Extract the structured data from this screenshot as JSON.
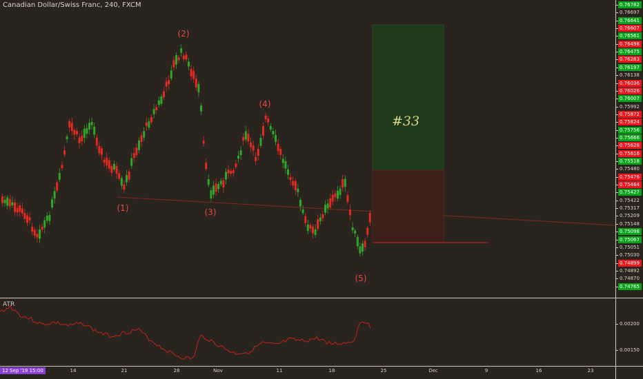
{
  "header": {
    "symbol_title": "Canadian Dollar/Swiss Franc, 240, FXCM"
  },
  "price_axis": {
    "labels": [
      {
        "text": "0.76782",
        "style": "g"
      },
      {
        "text": "0.76697",
        "style": "w"
      },
      {
        "text": "0.76641",
        "style": "g"
      },
      {
        "text": "0.76607",
        "style": "r"
      },
      {
        "text": "0.76561",
        "style": "g"
      },
      {
        "text": "0.76498",
        "style": "r"
      },
      {
        "text": "0.76475",
        "style": "g"
      },
      {
        "text": "0.76283",
        "style": "r"
      },
      {
        "text": "0.76197",
        "style": "g"
      },
      {
        "text": "0.76138",
        "style": "w"
      },
      {
        "text": "0.76036",
        "style": "r"
      },
      {
        "text": "0.76026",
        "style": "r"
      },
      {
        "text": "0.76007",
        "style": "g"
      },
      {
        "text": "0.75992",
        "style": "w"
      },
      {
        "text": "0.75872",
        "style": "r"
      },
      {
        "text": "0.75824",
        "style": "r"
      },
      {
        "text": "0.75756",
        "style": "g"
      },
      {
        "text": "0.75666",
        "style": "g"
      },
      {
        "text": "0.75628",
        "style": "r"
      },
      {
        "text": "0.75616",
        "style": "r"
      },
      {
        "text": "0.75518",
        "style": "g"
      },
      {
        "text": "0.75480",
        "style": "w"
      },
      {
        "text": "0.75476",
        "style": "r"
      },
      {
        "text": "0.75464",
        "style": "r"
      },
      {
        "text": "0.75427",
        "style": "g"
      },
      {
        "text": "0.75422",
        "style": "w"
      },
      {
        "text": "0.75317",
        "style": "w"
      },
      {
        "text": "0.75209",
        "style": "w"
      },
      {
        "text": "0.75148",
        "style": "w"
      },
      {
        "text": "0.75098",
        "style": "g"
      },
      {
        "text": "0.75067",
        "style": "g"
      },
      {
        "text": "0.75051",
        "style": "w"
      },
      {
        "text": "0.75030",
        "style": "w"
      },
      {
        "text": "0.74899",
        "style": "r"
      },
      {
        "text": "0.74892",
        "style": "w"
      },
      {
        "text": "0.74870",
        "style": "w"
      },
      {
        "text": "0.74765",
        "style": "g"
      }
    ]
  },
  "atr_pane": {
    "title": "ATR",
    "axis_labels": [
      "0.00200",
      "0.00150"
    ],
    "line_color": "#c0221c"
  },
  "time_axis": {
    "highlight_label": "12 Sep '19   15:00",
    "labels": [
      "14",
      "21",
      "28",
      "Nov",
      "11",
      "18",
      "25",
      "Dec",
      "9",
      "16",
      "23"
    ]
  },
  "waves": {
    "labels": [
      "(1)",
      "(2)",
      "(3)",
      "(4)",
      "(5)"
    ]
  },
  "trade_box": {
    "label": "#33",
    "profit_color": "#1f3a1a",
    "loss_color": "#3e201a"
  },
  "colors": {
    "background": "#2a241e",
    "candle_up": "#2fa52a",
    "candle_down": "#e02a22",
    "neckline": "#7a2a22"
  }
}
